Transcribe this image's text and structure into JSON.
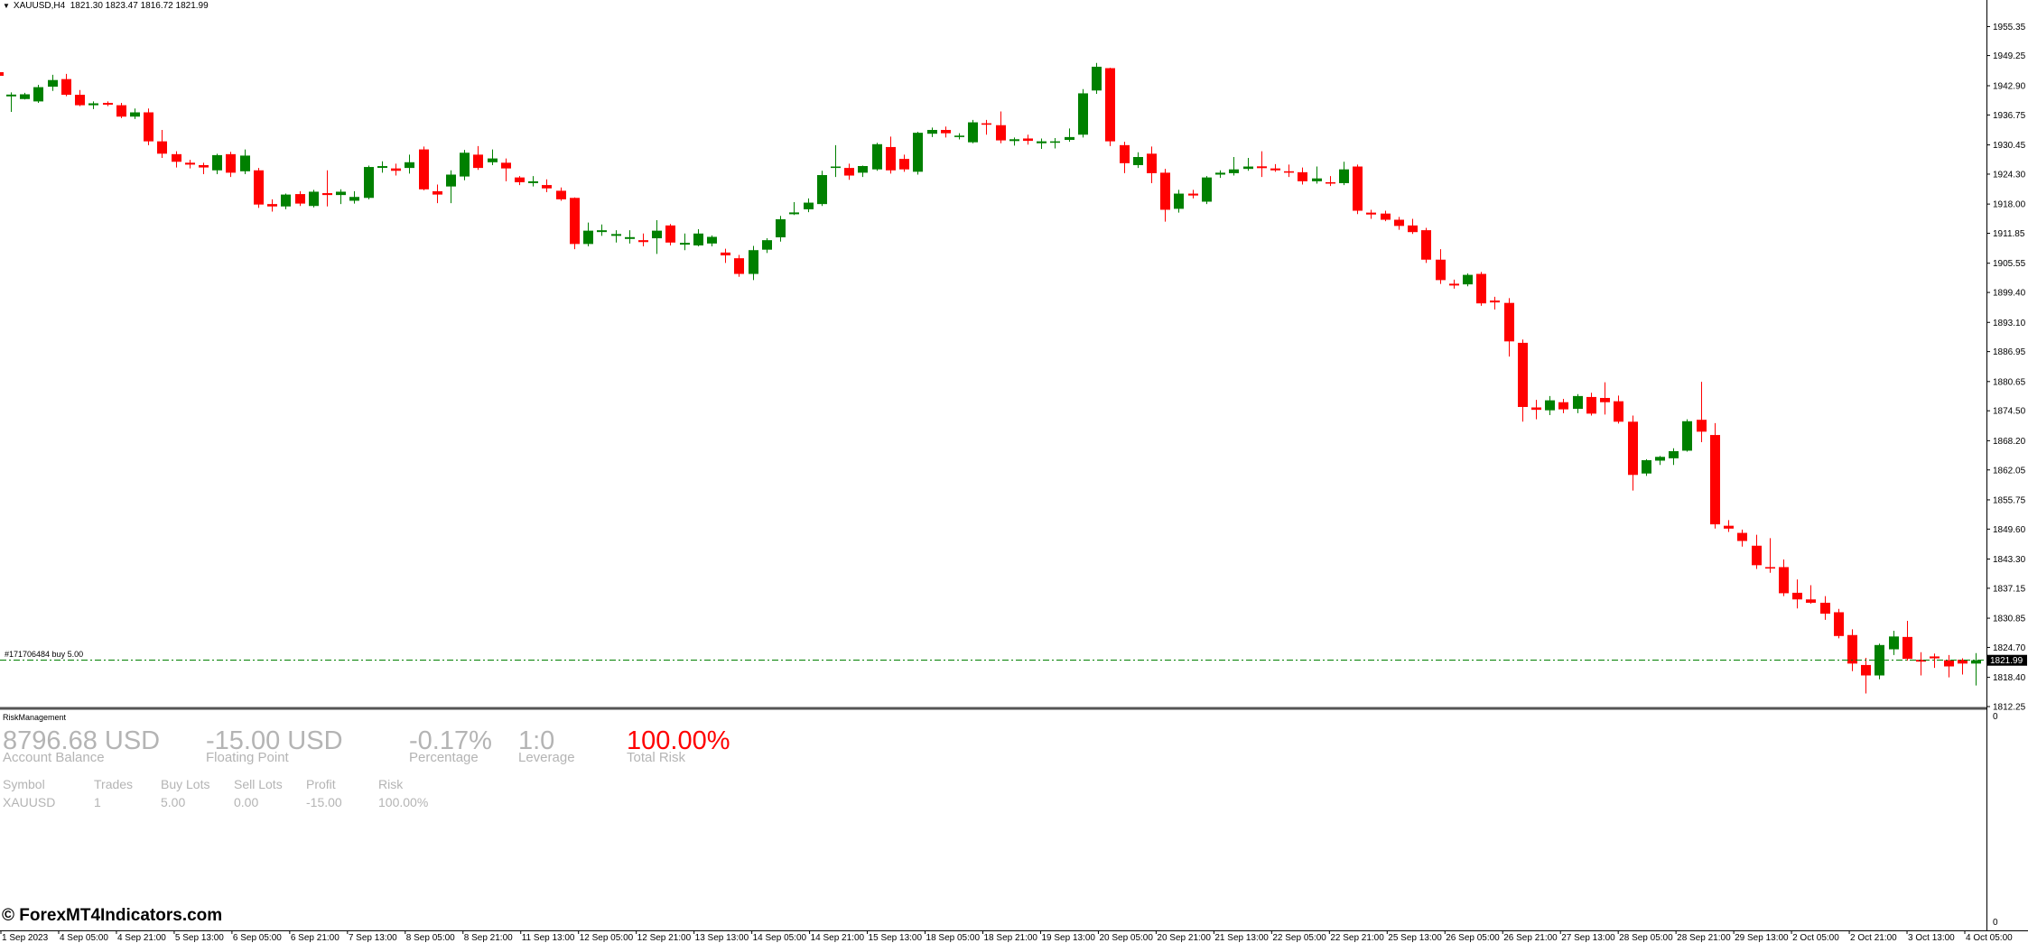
{
  "header": {
    "menu_arrow_icon": "triangle-down",
    "symbol_timeframe": "XAUUSD,H4",
    "ohlc": "1821.30 1823.47 1816.72 1821.99"
  },
  "colors": {
    "bull": "#008000",
    "bear": "#ff0000",
    "order_line": "#008000",
    "background": "#ffffff",
    "risk_red": "#ff0000",
    "panel_text": "#b4b4b4"
  },
  "order_line": {
    "label": "#171706484 buy 5.00",
    "price": 1822.1
  },
  "current_price": "1821.99",
  "chart_data": {
    "type": "candlestick",
    "y_range": [
      1812.25,
      1958.0
    ],
    "y_ticks": [
      "1955.35",
      "1949.25",
      "1942.90",
      "1936.75",
      "1930.45",
      "1924.30",
      "1918.00",
      "1911.85",
      "1905.55",
      "1899.40",
      "1893.10",
      "1886.95",
      "1880.65",
      "1874.50",
      "1868.20",
      "1862.05",
      "1855.75",
      "1849.60",
      "1843.30",
      "1837.15",
      "1830.85",
      "1824.70",
      "1818.40",
      "1812.25"
    ],
    "x_ticks": [
      "1 Sep 2023",
      "4 Sep 05:00",
      "4 Sep 21:00",
      "5 Sep 13:00",
      "6 Sep 05:00",
      "6 Sep 21:00",
      "7 Sep 13:00",
      "8 Sep 05:00",
      "8 Sep 21:00",
      "11 Sep 13:00",
      "12 Sep 05:00",
      "12 Sep 21:00",
      "13 Sep 13:00",
      "14 Sep 05:00",
      "14 Sep 21:00",
      "15 Sep 13:00",
      "18 Sep 05:00",
      "18 Sep 21:00",
      "19 Sep 13:00",
      "20 Sep 05:00",
      "20 Sep 21:00",
      "21 Sep 13:00",
      "22 Sep 05:00",
      "22 Sep 21:00",
      "25 Sep 13:00",
      "26 Sep 05:00",
      "26 Sep 21:00",
      "27 Sep 13:00",
      "28 Sep 05:00",
      "28 Sep 21:00",
      "29 Sep 13:00",
      "2 Oct 05:00",
      "2 Oct 21:00",
      "3 Oct 13:00",
      "4 Oct 05:00"
    ],
    "candles": [
      [
        1940.8,
        1941.5,
        1937.4,
        1940.9
      ],
      [
        1940.1,
        1941.4,
        1940.0,
        1941.1
      ],
      [
        1939.6,
        1943.1,
        1939.3,
        1942.6
      ],
      [
        1942.7,
        1945.2,
        1941.8,
        1944.1
      ],
      [
        1944.3,
        1945.4,
        1940.7,
        1941.0
      ],
      [
        1941.0,
        1942.0,
        1938.6,
        1938.8
      ],
      [
        1938.8,
        1939.6,
        1938.0,
        1939.2
      ],
      [
        1939.2,
        1939.6,
        1938.6,
        1939.0
      ],
      [
        1938.8,
        1939.3,
        1936.1,
        1936.4
      ],
      [
        1936.4,
        1938.1,
        1935.9,
        1937.3
      ],
      [
        1937.3,
        1938.1,
        1930.4,
        1931.2
      ],
      [
        1931.2,
        1933.6,
        1927.7,
        1928.6
      ],
      [
        1928.5,
        1929.1,
        1925.7,
        1926.9
      ],
      [
        1926.7,
        1927.3,
        1925.5,
        1926.3
      ],
      [
        1926.2,
        1926.7,
        1924.3,
        1925.7
      ],
      [
        1925.1,
        1928.6,
        1924.3,
        1928.3
      ],
      [
        1928.5,
        1929.0,
        1923.7,
        1924.6
      ],
      [
        1924.9,
        1929.5,
        1924.3,
        1928.2
      ],
      [
        1925.1,
        1925.6,
        1917.2,
        1917.9
      ],
      [
        1918.0,
        1919.0,
        1916.4,
        1917.5
      ],
      [
        1917.5,
        1920.2,
        1916.9,
        1920.0
      ],
      [
        1920.1,
        1920.7,
        1917.6,
        1918.1
      ],
      [
        1917.6,
        1921.0,
        1917.3,
        1920.6
      ],
      [
        1920.3,
        1925.1,
        1917.5,
        1919.9
      ],
      [
        1919.9,
        1921.1,
        1918.0,
        1920.6
      ],
      [
        1918.7,
        1920.7,
        1918.1,
        1919.5
      ],
      [
        1919.3,
        1926.1,
        1919.0,
        1925.8
      ],
      [
        1925.8,
        1927.0,
        1924.6,
        1925.8
      ],
      [
        1925.5,
        1926.5,
        1924.0,
        1925.0
      ],
      [
        1925.6,
        1928.4,
        1924.4,
        1926.8
      ],
      [
        1929.5,
        1930.1,
        1920.9,
        1921.1
      ],
      [
        1920.7,
        1922.1,
        1918.2,
        1920.0
      ],
      [
        1921.7,
        1925.1,
        1918.2,
        1924.2
      ],
      [
        1923.8,
        1929.4,
        1923.0,
        1928.8
      ],
      [
        1928.4,
        1930.2,
        1925.2,
        1925.6
      ],
      [
        1926.8,
        1929.5,
        1926.2,
        1927.6
      ],
      [
        1926.7,
        1927.6,
        1922.8,
        1925.5
      ],
      [
        1923.6,
        1923.9,
        1922.0,
        1922.6
      ],
      [
        1922.6,
        1923.9,
        1921.7,
        1922.6
      ],
      [
        1922.0,
        1923.2,
        1920.5,
        1921.3
      ],
      [
        1920.8,
        1921.5,
        1918.7,
        1919.0
      ],
      [
        1919.3,
        1919.4,
        1908.5,
        1909.6
      ],
      [
        1909.6,
        1914.1,
        1909.1,
        1912.4
      ],
      [
        1912.3,
        1913.7,
        1911.3,
        1912.3
      ],
      [
        1911.5,
        1912.5,
        1909.9,
        1911.5
      ],
      [
        1910.8,
        1912.5,
        1909.7,
        1910.9
      ],
      [
        1910.4,
        1911.8,
        1909.1,
        1910.0
      ],
      [
        1910.8,
        1914.6,
        1907.5,
        1912.4
      ],
      [
        1913.5,
        1913.8,
        1909.3,
        1909.9
      ],
      [
        1909.6,
        1911.8,
        1908.3,
        1909.7
      ],
      [
        1909.3,
        1912.7,
        1909.1,
        1911.8
      ],
      [
        1909.7,
        1911.4,
        1909.1,
        1911.1
      ],
      [
        1907.8,
        1908.6,
        1905.6,
        1907.2
      ],
      [
        1906.6,
        1907.3,
        1902.7,
        1903.3
      ],
      [
        1903.3,
        1909.2,
        1902.0,
        1908.3
      ],
      [
        1908.4,
        1910.8,
        1907.7,
        1910.4
      ],
      [
        1911.0,
        1915.5,
        1910.1,
        1914.8
      ],
      [
        1916.0,
        1918.4,
        1915.7,
        1916.1
      ],
      [
        1916.9,
        1919.2,
        1916.3,
        1918.3
      ],
      [
        1918.0,
        1925.0,
        1917.6,
        1924.1
      ],
      [
        1925.6,
        1930.4,
        1923.7,
        1925.9
      ],
      [
        1925.6,
        1926.5,
        1923.1,
        1924.0
      ],
      [
        1924.6,
        1926.1,
        1923.7,
        1926.0
      ],
      [
        1925.3,
        1930.9,
        1925.0,
        1930.6
      ],
      [
        1930.0,
        1932.2,
        1924.4,
        1925.1
      ],
      [
        1927.5,
        1928.4,
        1924.8,
        1925.3
      ],
      [
        1924.8,
        1933.2,
        1924.2,
        1933.0
      ],
      [
        1932.8,
        1934.1,
        1932.1,
        1933.6
      ],
      [
        1933.6,
        1934.3,
        1932.0,
        1932.9
      ],
      [
        1932.1,
        1932.9,
        1931.6,
        1932.4
      ],
      [
        1931.0,
        1935.7,
        1930.8,
        1935.2
      ],
      [
        1935.0,
        1935.7,
        1932.6,
        1934.7
      ],
      [
        1934.6,
        1937.5,
        1930.8,
        1931.4
      ],
      [
        1931.4,
        1932.0,
        1930.3,
        1931.5
      ],
      [
        1931.8,
        1932.6,
        1930.5,
        1931.3
      ],
      [
        1930.8,
        1931.8,
        1929.6,
        1931.2
      ],
      [
        1930.9,
        1931.9,
        1929.7,
        1931.2
      ],
      [
        1931.5,
        1933.9,
        1931.1,
        1932.1
      ],
      [
        1932.6,
        1942.2,
        1932.0,
        1941.3
      ],
      [
        1941.9,
        1947.7,
        1941.2,
        1946.9
      ],
      [
        1946.6,
        1946.7,
        1930.2,
        1931.2
      ],
      [
        1930.4,
        1931.1,
        1924.5,
        1926.6
      ],
      [
        1926.2,
        1928.9,
        1925.6,
        1927.9
      ],
      [
        1928.6,
        1930.1,
        1922.4,
        1924.5
      ],
      [
        1924.6,
        1925.4,
        1914.3,
        1916.8
      ],
      [
        1917.0,
        1921.0,
        1916.2,
        1920.2
      ],
      [
        1920.2,
        1921.0,
        1919.2,
        1919.8
      ],
      [
        1918.5,
        1923.9,
        1918.0,
        1923.6
      ],
      [
        1924.2,
        1925.1,
        1923.5,
        1924.6
      ],
      [
        1924.5,
        1927.9,
        1924.0,
        1925.3
      ],
      [
        1925.4,
        1927.7,
        1925.0,
        1925.9
      ],
      [
        1925.8,
        1929.1,
        1923.7,
        1925.7
      ],
      [
        1925.5,
        1926.4,
        1924.8,
        1925.1
      ],
      [
        1924.9,
        1926.3,
        1923.7,
        1924.6
      ],
      [
        1924.7,
        1925.7,
        1922.1,
        1922.8
      ],
      [
        1922.8,
        1925.9,
        1922.3,
        1923.4
      ],
      [
        1922.6,
        1923.9,
        1921.8,
        1922.3
      ],
      [
        1922.4,
        1926.9,
        1922.0,
        1925.3
      ],
      [
        1925.9,
        1926.3,
        1915.9,
        1916.6
      ],
      [
        1916.2,
        1916.8,
        1914.9,
        1915.8
      ],
      [
        1916.0,
        1916.6,
        1914.4,
        1914.7
      ],
      [
        1914.7,
        1915.3,
        1912.6,
        1913.4
      ],
      [
        1913.5,
        1914.9,
        1911.7,
        1912.1
      ],
      [
        1912.5,
        1913.0,
        1905.6,
        1906.3
      ],
      [
        1906.3,
        1908.5,
        1901.2,
        1902.0
      ],
      [
        1901.1,
        1902.1,
        1900.2,
        1901.0
      ],
      [
        1901.1,
        1903.4,
        1900.7,
        1903.1
      ],
      [
        1903.3,
        1903.7,
        1896.6,
        1897.1
      ],
      [
        1897.7,
        1898.5,
        1895.8,
        1897.3
      ],
      [
        1897.2,
        1898.2,
        1885.9,
        1889.1
      ],
      [
        1888.8,
        1889.5,
        1872.2,
        1875.3
      ],
      [
        1875.2,
        1876.8,
        1872.7,
        1874.7
      ],
      [
        1874.6,
        1877.6,
        1873.6,
        1876.7
      ],
      [
        1876.3,
        1877.0,
        1874.0,
        1874.8
      ],
      [
        1874.9,
        1878.0,
        1874.0,
        1877.6
      ],
      [
        1877.4,
        1878.3,
        1873.5,
        1873.9
      ],
      [
        1877.2,
        1880.5,
        1873.7,
        1876.3
      ],
      [
        1876.5,
        1877.7,
        1871.8,
        1872.2
      ],
      [
        1872.2,
        1873.5,
        1857.7,
        1861.0
      ],
      [
        1861.3,
        1864.3,
        1860.8,
        1864.1
      ],
      [
        1864.0,
        1865.0,
        1863.1,
        1864.8
      ],
      [
        1864.5,
        1866.6,
        1863.1,
        1866.0
      ],
      [
        1866.1,
        1872.7,
        1865.9,
        1872.3
      ],
      [
        1872.6,
        1880.6,
        1867.9,
        1870.1
      ],
      [
        1869.4,
        1871.9,
        1849.7,
        1850.6
      ],
      [
        1850.3,
        1851.5,
        1849.0,
        1849.7
      ],
      [
        1848.8,
        1849.5,
        1845.9,
        1847.1
      ],
      [
        1846.1,
        1848.4,
        1841.2,
        1842.0
      ],
      [
        1841.6,
        1847.7,
        1840.4,
        1841.3
      ],
      [
        1841.6,
        1843.2,
        1835.5,
        1836.1
      ],
      [
        1836.2,
        1839.0,
        1832.9,
        1834.8
      ],
      [
        1834.8,
        1837.8,
        1833.9,
        1834.1
      ],
      [
        1834.1,
        1835.5,
        1830.5,
        1831.8
      ],
      [
        1832.1,
        1832.8,
        1826.6,
        1827.1
      ],
      [
        1827.3,
        1828.5,
        1819.7,
        1821.3
      ],
      [
        1821.0,
        1822.5,
        1815.0,
        1818.8
      ],
      [
        1818.8,
        1825.5,
        1818.0,
        1825.2
      ],
      [
        1824.3,
        1828.2,
        1823.1,
        1827.0
      ],
      [
        1826.9,
        1830.3,
        1821.9,
        1822.3
      ],
      [
        1822.0,
        1823.7,
        1818.8,
        1821.8
      ],
      [
        1822.8,
        1823.4,
        1820.4,
        1822.4
      ],
      [
        1822.0,
        1823.1,
        1818.4,
        1820.7
      ],
      [
        1822.1,
        1822.4,
        1819.0,
        1821.3
      ],
      [
        1821.3,
        1823.5,
        1816.7,
        1821.99
      ]
    ]
  },
  "risk_panel": {
    "title": "RiskManagement",
    "account_balance": {
      "value": "8796.68 USD",
      "label": "Account Balance"
    },
    "floating_point": {
      "value": "-15.00 USD",
      "label": "Floating Point"
    },
    "percentage": {
      "value": "-0.17%",
      "label": "Percentage"
    },
    "leverage": {
      "value": "1:0",
      "label": "Leverage"
    },
    "total_risk": {
      "value": "100.00%",
      "label": "Total Risk"
    },
    "table": {
      "headers": [
        "Symbol",
        "Trades",
        "Buy Lots",
        "Sell Lots",
        "Profit",
        "Risk"
      ],
      "row": [
        "XAUUSD",
        "1",
        "5.00",
        "0.00",
        "-15.00",
        "100.00%"
      ]
    },
    "scale_top": "0",
    "scale_bottom": "0"
  },
  "watermark": "© ForexMT4Indicators.com"
}
